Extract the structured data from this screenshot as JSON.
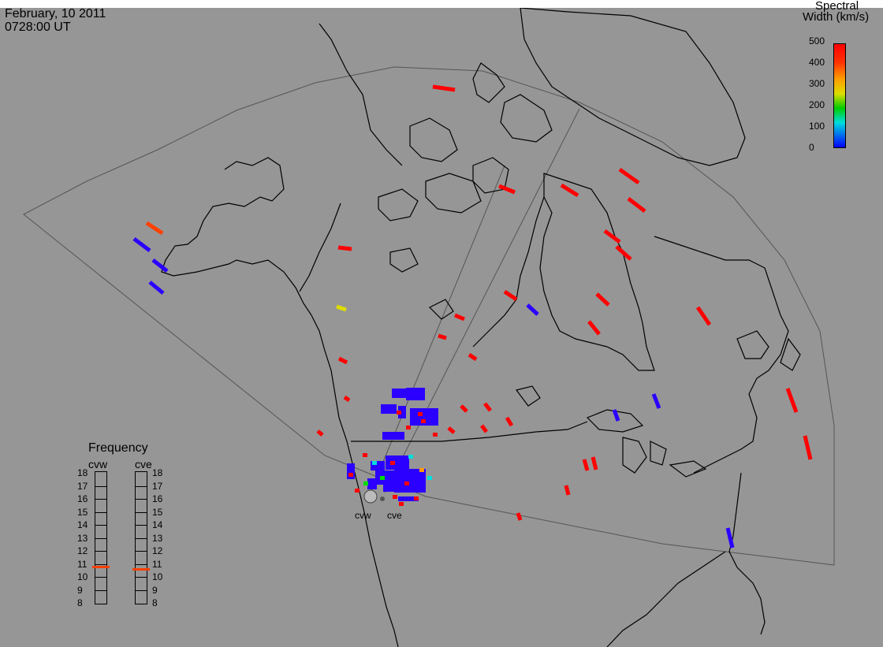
{
  "header": {
    "date": "February, 10 2011",
    "time": "0728:00 UT"
  },
  "scale": {
    "title_line1": "Spectral",
    "title_line2": "Width (km/s)",
    "ticks": [
      "500",
      "400",
      "300",
      "200",
      "100",
      "0"
    ],
    "colors": [
      "#ff0000",
      "#ff4000",
      "#ff9900",
      "#dddd00",
      "#00dd00",
      "#00dddd",
      "#0000ff"
    ]
  },
  "frequency_panel": {
    "title": "Frequency",
    "radars": [
      {
        "name": "cvw",
        "freq_mhz": 10.8
      },
      {
        "name": "cve",
        "freq_mhz": 10.6
      }
    ],
    "ticks": [
      "18",
      "17",
      "16",
      "15",
      "14",
      "13",
      "12",
      "11",
      "10",
      "9",
      "8"
    ]
  },
  "map_labels": {
    "radar_west": "cvw",
    "radar_east": "cve"
  },
  "colors": {
    "background": "#969696",
    "coast": "#000000",
    "fov_outline": "#555555",
    "freq_marker": "#ff4000",
    "high_width": "#ff0000",
    "low_width": "#2b00ff"
  }
}
